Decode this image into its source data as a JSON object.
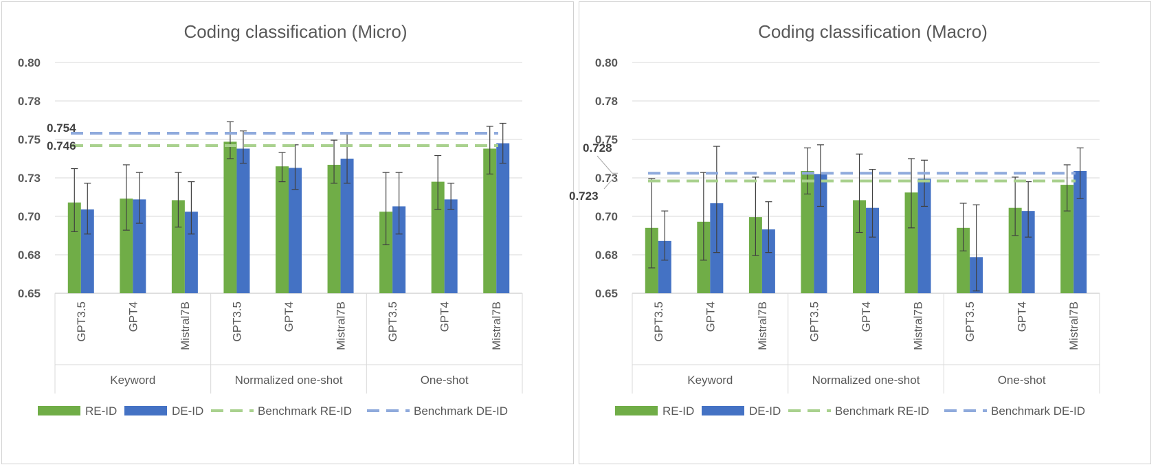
{
  "chart_data": [
    {
      "type": "bar",
      "title": "Coding classification (Micro)",
      "ylim": [
        0.65,
        0.8
      ],
      "yticks": [
        "0.80",
        "0.78",
        "0.75",
        "0.73",
        "0.70",
        "0.68",
        "0.65"
      ],
      "ytick_values": [
        0.8,
        0.775,
        0.75,
        0.725,
        0.7,
        0.675,
        0.65
      ],
      "groups": [
        "Keyword",
        "Normalized one-shot",
        "One-shot"
      ],
      "categories": [
        "GPT3.5",
        "GPT4",
        "Mistral7B",
        "GPT3.5",
        "GPT4",
        "Mistral7B",
        "GPT3.5",
        "GPT4",
        "Mistral7B"
      ],
      "series": [
        {
          "name": "RE-ID",
          "color": "#70ad47",
          "values": [
            0.709,
            0.7115,
            0.7105,
            0.7485,
            0.7325,
            0.7335,
            0.703,
            0.7225,
            0.744
          ],
          "err_low": [
            0.69,
            0.691,
            0.693,
            0.7375,
            0.7225,
            0.7215,
            0.6815,
            0.7045,
            0.7275
          ],
          "err_high": [
            0.731,
            0.7335,
            0.7285,
            0.7615,
            0.7415,
            0.7495,
            0.7285,
            0.7395,
            0.7585
          ]
        },
        {
          "name": "DE-ID",
          "color": "#4472c4",
          "values": [
            0.7045,
            0.711,
            0.703,
            0.744,
            0.7315,
            0.7375,
            0.7065,
            0.711,
            0.7475
          ],
          "err_low": [
            0.6885,
            0.6955,
            0.6885,
            0.7345,
            0.7175,
            0.7215,
            0.6885,
            0.7045,
            0.7345
          ],
          "err_high": [
            0.7215,
            0.7285,
            0.7225,
            0.7555,
            0.7465,
            0.7535,
            0.7285,
            0.7215,
            0.7605
          ]
        }
      ],
      "benchmarks": [
        {
          "name": "Benchmark RE-ID",
          "value": 0.746,
          "label": "0.746",
          "color": "#a9d18e"
        },
        {
          "name": "Benchmark DE-ID",
          "value": 0.754,
          "label": "0.754",
          "color": "#8faadc"
        }
      ],
      "legend_position": "bottom",
      "grid": true
    },
    {
      "type": "bar",
      "title": "Coding classification (Macro)",
      "ylim": [
        0.65,
        0.8
      ],
      "yticks": [
        "0.80",
        "0.78",
        "0.75",
        "0.73",
        "0.70",
        "0.68",
        "0.65"
      ],
      "ytick_values": [
        0.8,
        0.775,
        0.75,
        0.725,
        0.7,
        0.675,
        0.65
      ],
      "groups": [
        "Keyword",
        "Normalized one-shot",
        "One-shot"
      ],
      "categories": [
        "GPT3.5",
        "GPT4",
        "Mistral7B",
        "GPT3.5",
        "GPT4",
        "Mistral7B",
        "GPT3.5",
        "GPT4",
        "Mistral7B"
      ],
      "series": [
        {
          "name": "RE-ID",
          "color": "#70ad47",
          "values": [
            0.6925,
            0.6965,
            0.6995,
            0.7295,
            0.7105,
            0.7155,
            0.6925,
            0.7055,
            0.7205
          ],
          "err_low": [
            0.6665,
            0.6715,
            0.6745,
            0.7145,
            0.6895,
            0.6925,
            0.6775,
            0.6875,
            0.7035
          ],
          "err_high": [
            0.7245,
            0.7285,
            0.7255,
            0.7445,
            0.7405,
            0.7375,
            0.7085,
            0.7255,
            0.7335
          ]
        },
        {
          "name": "DE-ID",
          "color": "#4472c4",
          "values": [
            0.684,
            0.7085,
            0.6915,
            0.7275,
            0.7055,
            0.7245,
            0.6735,
            0.7035,
            0.7295
          ],
          "err_low": [
            0.6715,
            0.6765,
            0.6765,
            0.7065,
            0.6865,
            0.7065,
            0.6515,
            0.6865,
            0.7115
          ],
          "err_high": [
            0.7035,
            0.7455,
            0.7095,
            0.7465,
            0.7305,
            0.7365,
            0.7075,
            0.7225,
            0.7445
          ]
        }
      ],
      "benchmarks": [
        {
          "name": "Benchmark RE-ID",
          "value": 0.723,
          "label": "0.723",
          "color": "#a9d18e"
        },
        {
          "name": "Benchmark DE-ID",
          "value": 0.728,
          "label": "0.728",
          "color": "#8faadc"
        }
      ],
      "legend_position": "bottom",
      "grid": true
    }
  ]
}
